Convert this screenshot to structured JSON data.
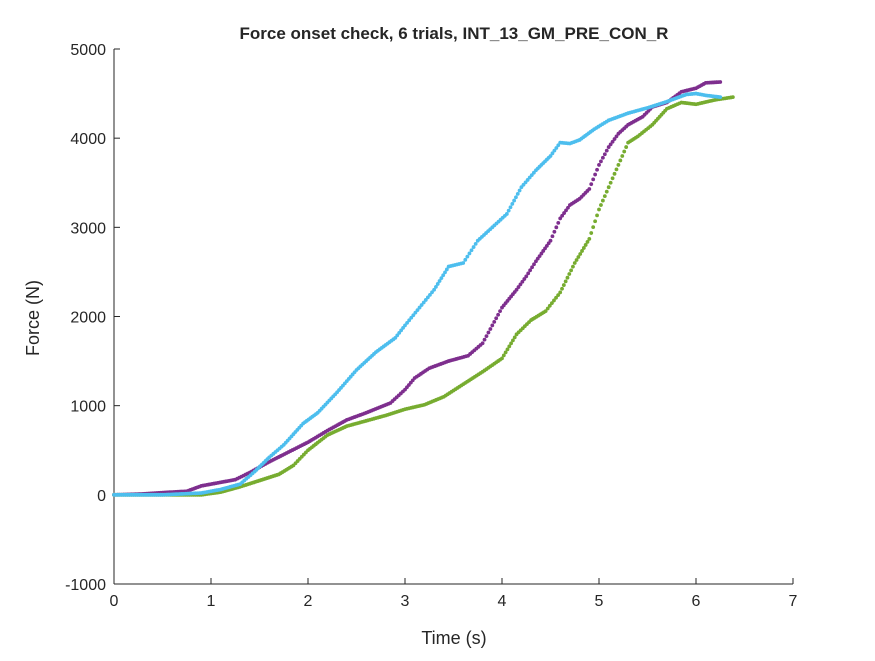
{
  "chart_data": {
    "type": "scatter",
    "title": "Force onset check, 6 trials, INT_13_GM_PRE_CON_R",
    "xlabel": "Time (s)",
    "ylabel": "Force (N)",
    "xlim": [
      0,
      7
    ],
    "ylim": [
      -1000,
      5000
    ],
    "xticks": [
      0,
      1,
      2,
      3,
      4,
      5,
      6,
      7
    ],
    "yticks": [
      -1000,
      0,
      1000,
      2000,
      3000,
      4000,
      5000
    ],
    "grid": false,
    "legend": "none",
    "colors": {
      "axes": "#262626",
      "series_purple": "#7E2F8E",
      "series_green": "#77AC30",
      "series_cyan": "#4DBEEE"
    },
    "series": [
      {
        "color": "#7E2F8E",
        "x": [
          0,
          0.3,
          0.5,
          0.75,
          0.9,
          1.05,
          1.25,
          1.4,
          1.6,
          1.8,
          2.0,
          2.2,
          2.4,
          2.6,
          2.85,
          3.0,
          3.1,
          3.25,
          3.45,
          3.65,
          3.8,
          3.9,
          4.0,
          4.15,
          4.25,
          4.35,
          4.5,
          4.6,
          4.7,
          4.8,
          4.9,
          5.0,
          5.1,
          5.2,
          5.3,
          5.45,
          5.55,
          5.7,
          5.85,
          6.0,
          6.1,
          6.25
        ],
        "y": [
          0,
          10,
          25,
          40,
          100,
          130,
          170,
          250,
          370,
          480,
          590,
          720,
          840,
          920,
          1030,
          1180,
          1310,
          1420,
          1500,
          1560,
          1700,
          1900,
          2100,
          2300,
          2450,
          2620,
          2850,
          3100,
          3250,
          3320,
          3430,
          3700,
          3900,
          4050,
          4150,
          4240,
          4350,
          4400,
          4520,
          4560,
          4620,
          4630
        ]
      },
      {
        "color": "#77AC30",
        "x": [
          0,
          0.5,
          0.9,
          1.1,
          1.3,
          1.5,
          1.7,
          1.85,
          2.0,
          2.2,
          2.4,
          2.6,
          2.8,
          3.0,
          3.2,
          3.4,
          3.6,
          3.8,
          4.0,
          4.15,
          4.3,
          4.45,
          4.6,
          4.75,
          4.9,
          5.0,
          5.1,
          5.2,
          5.3,
          5.4,
          5.55,
          5.7,
          5.85,
          6.0,
          6.2,
          6.38
        ],
        "y": [
          0,
          0,
          0,
          30,
          90,
          160,
          230,
          330,
          500,
          670,
          770,
          830,
          890,
          960,
          1010,
          1100,
          1240,
          1380,
          1530,
          1800,
          1960,
          2060,
          2270,
          2600,
          2870,
          3200,
          3450,
          3700,
          3950,
          4020,
          4150,
          4330,
          4400,
          4380,
          4430,
          4460
        ]
      },
      {
        "color": "#4DBEEE",
        "x": [
          0,
          0.5,
          0.9,
          1.1,
          1.3,
          1.45,
          1.6,
          1.75,
          1.85,
          1.95,
          2.1,
          2.3,
          2.5,
          2.7,
          2.9,
          3.0,
          3.15,
          3.3,
          3.45,
          3.6,
          3.75,
          3.9,
          4.05,
          4.2,
          4.35,
          4.5,
          4.6,
          4.7,
          4.8,
          4.95,
          5.1,
          5.3,
          5.5,
          5.7,
          5.9,
          6.0,
          6.1,
          6.25
        ],
        "y": [
          0,
          0,
          20,
          60,
          120,
          260,
          420,
          560,
          680,
          800,
          920,
          1150,
          1400,
          1600,
          1760,
          1900,
          2100,
          2300,
          2560,
          2600,
          2850,
          3000,
          3150,
          3450,
          3640,
          3800,
          3950,
          3940,
          3980,
          4100,
          4200,
          4280,
          4340,
          4410,
          4490,
          4500,
          4480,
          4460
        ]
      }
    ]
  }
}
